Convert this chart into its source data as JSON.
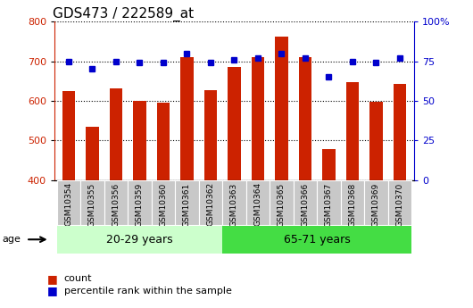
{
  "title": "GDS473 / 222589_at",
  "samples": [
    "GSM10354",
    "GSM10355",
    "GSM10356",
    "GSM10359",
    "GSM10360",
    "GSM10361",
    "GSM10362",
    "GSM10363",
    "GSM10364",
    "GSM10365",
    "GSM10366",
    "GSM10367",
    "GSM10368",
    "GSM10369",
    "GSM10370"
  ],
  "counts": [
    625,
    535,
    632,
    600,
    596,
    710,
    628,
    685,
    710,
    762,
    710,
    479,
    648,
    597,
    642
  ],
  "percentiles": [
    75,
    70,
    75,
    74,
    74,
    80,
    74,
    76,
    77,
    80,
    77,
    65,
    75,
    74,
    77
  ],
  "group1_label": "20-29 years",
  "group2_label": "65-71 years",
  "group1_count": 7,
  "group2_count": 8,
  "ylim_left": [
    400,
    800
  ],
  "ylim_right": [
    0,
    100
  ],
  "yticks_left": [
    400,
    500,
    600,
    700,
    800
  ],
  "yticks_right": [
    0,
    25,
    50,
    75,
    100
  ],
  "ytick_labels_right": [
    "0",
    "25",
    "50",
    "75",
    "100%"
  ],
  "bar_color": "#cc2200",
  "dot_color": "#0000cc",
  "group1_bg": "#ccffcc",
  "group2_bg": "#44dd44",
  "tick_bg": "#c8c8c8",
  "legend_red_label": "count",
  "legend_blue_label": "percentile rank within the sample",
  "title_fontsize": 11,
  "tick_fontsize": 8,
  "group_fontsize": 9,
  "label_fontsize": 6.5
}
